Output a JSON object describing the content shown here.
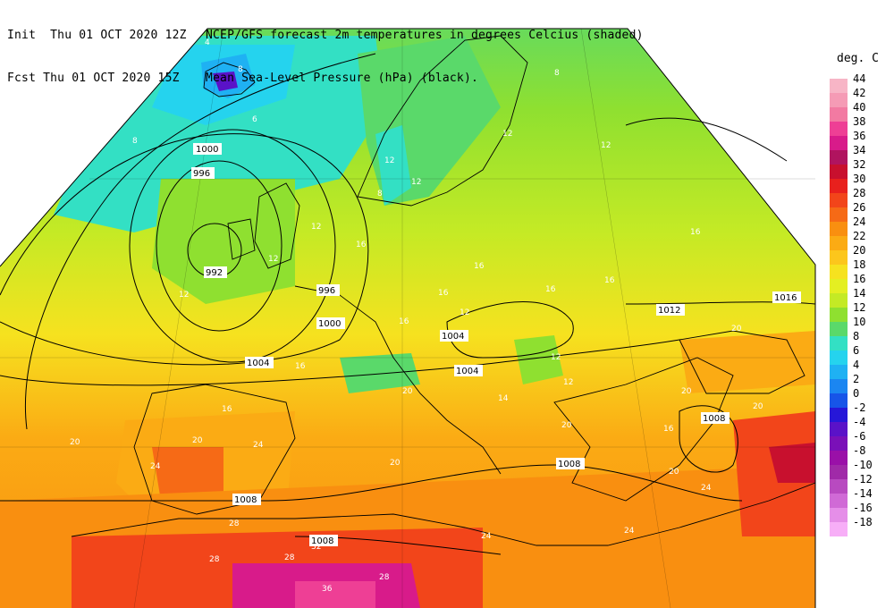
{
  "header": {
    "left_line1": "Init  Thu 01 OCT 2020 12Z",
    "left_line2": "Fcst Thu 01 OCT 2020 15Z",
    "right_line1": "NCEP/GFS forecast 2m temperatures in degrees Celcius (shaded)",
    "right_line2": "Mean Sea-Level Pressure (hPa) (black)."
  },
  "legend": {
    "title": "deg. C",
    "items": [
      {
        "label": "44",
        "color": "#f7b5c6"
      },
      {
        "label": "42",
        "color": "#f59bb5"
      },
      {
        "label": "40",
        "color": "#f27aa2"
      },
      {
        "label": "38",
        "color": "#ee3f95"
      },
      {
        "label": "36",
        "color": "#d81b8a"
      },
      {
        "label": "34",
        "color": "#b0145f"
      },
      {
        "label": "32",
        "color": "#c8102e"
      },
      {
        "label": "30",
        "color": "#e8201d"
      },
      {
        "label": "28",
        "color": "#f2451a"
      },
      {
        "label": "26",
        "color": "#f66a16"
      },
      {
        "label": "24",
        "color": "#f98f10"
      },
      {
        "label": "22",
        "color": "#fbab14"
      },
      {
        "label": "20",
        "color": "#fcc61c"
      },
      {
        "label": "18",
        "color": "#f6e21f"
      },
      {
        "label": "16",
        "color": "#e4ef22"
      },
      {
        "label": "14",
        "color": "#c4ea25"
      },
      {
        "label": "12",
        "color": "#8fe030"
      },
      {
        "label": "10",
        "color": "#5ad96a"
      },
      {
        "label": "8",
        "color": "#33e0c4"
      },
      {
        "label": "6",
        "color": "#25d3ee"
      },
      {
        "label": "4",
        "color": "#1fb1f3"
      },
      {
        "label": "2",
        "color": "#1b86f1"
      },
      {
        "label": "0",
        "color": "#1755e8"
      },
      {
        "label": "-2",
        "color": "#2617d8"
      },
      {
        "label": "-4",
        "color": "#5a12c8"
      },
      {
        "label": "-6",
        "color": "#7a10b8"
      },
      {
        "label": "-8",
        "color": "#9a10a8"
      },
      {
        "label": "-10",
        "color": "#a02aa8"
      },
      {
        "label": "-12",
        "color": "#b84ac0"
      },
      {
        "label": "-14",
        "color": "#d06ad6"
      },
      {
        "label": "-16",
        "color": "#e58ee8"
      },
      {
        "label": "-18",
        "color": "#f7aef7"
      }
    ]
  },
  "map": {
    "temperature_labels": [
      "12",
      "12",
      "12",
      "12",
      "12",
      "12",
      "12",
      "12",
      "12",
      "12",
      "16",
      "16",
      "16",
      "16",
      "16",
      "16",
      "16",
      "16",
      "16",
      "16",
      "20",
      "20",
      "20",
      "20",
      "20",
      "20",
      "20",
      "20",
      "20",
      "24",
      "24",
      "24",
      "24",
      "24",
      "28",
      "28",
      "28",
      "28",
      "32",
      "36",
      "8",
      "8",
      "8",
      "8",
      "4",
      "6",
      "14"
    ],
    "isobar_labels": [
      "1000",
      "996",
      "992",
      "996",
      "1000",
      "1004",
      "1004",
      "1004",
      "1008",
      "1008",
      "1008",
      "1008",
      "1012",
      "1016"
    ]
  }
}
